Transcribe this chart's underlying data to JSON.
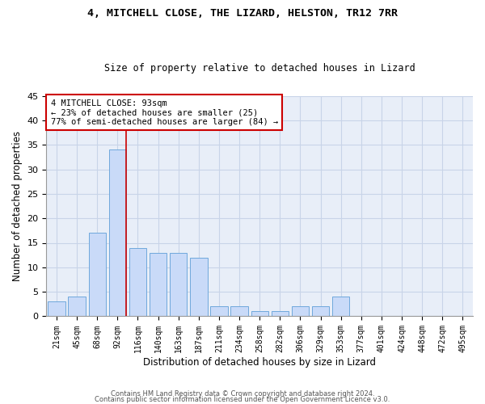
{
  "title1": "4, MITCHELL CLOSE, THE LIZARD, HELSTON, TR12 7RR",
  "title2": "Size of property relative to detached houses in Lizard",
  "xlabel": "Distribution of detached houses by size in Lizard",
  "ylabel": "Number of detached properties",
  "categories": [
    "21sqm",
    "45sqm",
    "68sqm",
    "92sqm",
    "116sqm",
    "140sqm",
    "163sqm",
    "187sqm",
    "211sqm",
    "234sqm",
    "258sqm",
    "282sqm",
    "306sqm",
    "329sqm",
    "353sqm",
    "377sqm",
    "401sqm",
    "424sqm",
    "448sqm",
    "472sqm",
    "495sqm"
  ],
  "values": [
    3,
    4,
    17,
    34,
    14,
    13,
    13,
    12,
    2,
    2,
    1,
    1,
    2,
    2,
    4,
    0,
    0,
    0,
    0,
    0,
    0
  ],
  "bar_color": "#c9daf8",
  "bar_edge_color": "#6fa8dc",
  "vline_color": "#cc0000",
  "annotation_line1": "4 MITCHELL CLOSE: 93sqm",
  "annotation_line2": "← 23% of detached houses are smaller (25)",
  "annotation_line3": "77% of semi-detached houses are larger (84) →",
  "annotation_box_color": "#ffffff",
  "annotation_box_edge": "#cc0000",
  "ylim": [
    0,
    45
  ],
  "yticks": [
    0,
    5,
    10,
    15,
    20,
    25,
    30,
    35,
    40,
    45
  ],
  "grid_color": "#c8d4e8",
  "bg_color": "#e8eef8",
  "footer1": "Contains HM Land Registry data © Crown copyright and database right 2024.",
  "footer2": "Contains public sector information licensed under the Open Government Licence v3.0."
}
